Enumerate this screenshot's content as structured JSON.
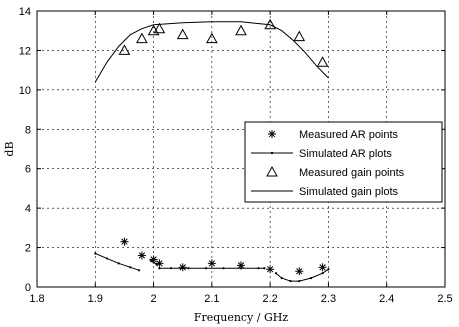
{
  "chart_data": {
    "type": "line",
    "title": "",
    "xlabel": "Frequency / GHz",
    "ylabel": "dB",
    "xlim": [
      1.8,
      2.5
    ],
    "ylim": [
      0,
      14
    ],
    "x_ticks": [
      "1.8",
      "1.9",
      "2",
      "2.1",
      "2.2",
      "2.3",
      "2.4",
      "2.5"
    ],
    "y_ticks": [
      "0",
      "2",
      "4",
      "6",
      "8",
      "10",
      "12",
      "14"
    ],
    "grid": true,
    "legend_position": "right-middle",
    "series": [
      {
        "name": "Measured AR points",
        "kind": "scatter",
        "marker": "asterisk",
        "x": [
          1.95,
          1.98,
          2.0,
          2.01,
          2.05,
          2.1,
          2.15,
          2.2,
          2.25,
          2.29
        ],
        "y": [
          2.3,
          1.6,
          1.4,
          1.2,
          1.0,
          1.2,
          1.1,
          0.9,
          0.8,
          1.0
        ]
      },
      {
        "name": "Simulated AR plots",
        "kind": "line-dot",
        "segments": [
          {
            "x": [
              1.9,
              1.92,
              1.94,
              1.96,
              1.975
            ],
            "y": [
              1.7,
              1.45,
              1.2,
              1.0,
              0.85
            ]
          },
          {
            "x": [
              1.995,
              2.0,
              2.005
            ],
            "y": [
              1.35,
              1.25,
              1.15
            ]
          },
          {
            "x": [
              2.01,
              2.03,
              2.06,
              2.09,
              2.12,
              2.15,
              2.18,
              2.19
            ],
            "y": [
              0.95,
              0.95,
              0.95,
              0.95,
              0.95,
              0.95,
              0.95,
              0.95
            ]
          },
          {
            "x": [
              2.21,
              2.22,
              2.235,
              2.25,
              2.27,
              2.29,
              2.3
            ],
            "y": [
              0.7,
              0.45,
              0.3,
              0.3,
              0.45,
              0.7,
              0.9
            ]
          }
        ]
      },
      {
        "name": "Measured gain points",
        "kind": "scatter",
        "marker": "triangle",
        "x": [
          1.95,
          1.98,
          2.0,
          2.01,
          2.05,
          2.1,
          2.15,
          2.2,
          2.25,
          2.29
        ],
        "y": [
          12.0,
          12.6,
          13.0,
          13.1,
          12.8,
          12.6,
          13.0,
          13.3,
          12.7,
          11.4
        ]
      },
      {
        "name": "Simulated gain plots",
        "kind": "line",
        "x": [
          1.9,
          1.92,
          1.94,
          1.96,
          1.98,
          2.0,
          2.05,
          2.1,
          2.15,
          2.2,
          2.22,
          2.24,
          2.26,
          2.28,
          2.3
        ],
        "y": [
          10.4,
          11.4,
          12.2,
          12.8,
          13.1,
          13.3,
          13.4,
          13.45,
          13.45,
          13.3,
          13.0,
          12.5,
          11.9,
          11.2,
          10.6
        ]
      }
    ]
  }
}
